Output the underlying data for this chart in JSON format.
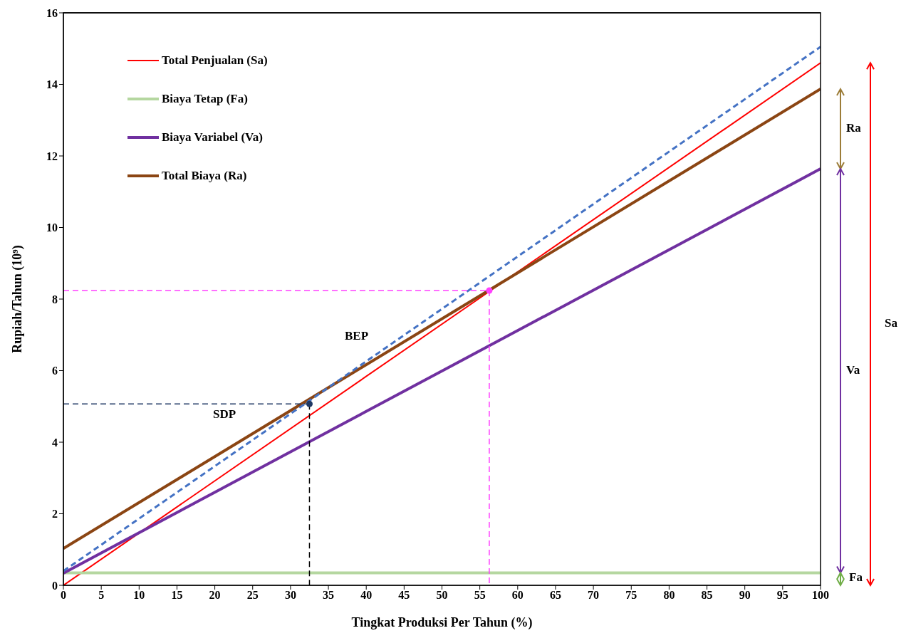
{
  "chart_data": {
    "type": "line",
    "xlabel": "Tingkat Produksi Per Tahun (%)",
    "ylabel": "Rupiah/Tahun (10⁹)",
    "xlim": [
      0,
      100
    ],
    "xticks": [
      0,
      5,
      10,
      15,
      20,
      25,
      30,
      35,
      40,
      45,
      50,
      55,
      60,
      65,
      70,
      75,
      80,
      85,
      90,
      95,
      100
    ],
    "ylim": [
      0,
      16
    ],
    "yticks": [
      0,
      2,
      4,
      6,
      8,
      10,
      12,
      14,
      16
    ],
    "grid": false,
    "legend": "top left",
    "marker": "none",
    "series": [
      {
        "name": "Total Penjualan (Sa)",
        "color": "#ff0000",
        "x": [
          0,
          100
        ],
        "values": [
          0,
          14.6
        ],
        "line_style": "solid"
      },
      {
        "name": "Biaya Tetap (Fa)",
        "color": "#b5d7a0",
        "x": [
          0,
          100
        ],
        "values": [
          0.35,
          0.35
        ],
        "line_style": "solid"
      },
      {
        "name": "Biaya Variabel (Va)",
        "color": "#7030a0",
        "x": [
          0,
          100
        ],
        "values": [
          0.34,
          11.64
        ],
        "line_style": "solid"
      },
      {
        "name": "Total Biaya (Ra)",
        "color": "#8b4513",
        "x": [
          0,
          100
        ],
        "values": [
          1.03,
          13.87
        ],
        "line_style": "solid"
      },
      {
        "color": "#4472c4",
        "x": [
          0,
          100
        ],
        "values": [
          0.4,
          15.05
        ],
        "line_style": "dashed"
      },
      {
        "color": "#1f3864",
        "x": [
          0,
          32.5
        ],
        "values": [
          5.07,
          5.07
        ],
        "line_style": "dashed"
      },
      {
        "color": "#000000",
        "x": [
          32.5,
          32.5
        ],
        "values": [
          5.07,
          0
        ],
        "line_style": "dashed"
      },
      {
        "color": "#ff40ff",
        "x": [
          0,
          56.25,
          56.25
        ],
        "values": [
          8.24,
          8.24,
          0
        ],
        "line_style": "dashed"
      },
      {
        "type": "scatter",
        "color": "#1f3864",
        "x": [
          32.5
        ],
        "values": [
          5.07
        ],
        "marker": "circle"
      },
      {
        "type": "scatter",
        "color": "#ff40ff",
        "x": [
          56.25
        ],
        "values": [
          8.24
        ],
        "marker": "circle"
      }
    ],
    "annotations": [
      "BEP",
      "SDP",
      "Ra",
      "Va",
      "Fa",
      "Sa"
    ]
  }
}
